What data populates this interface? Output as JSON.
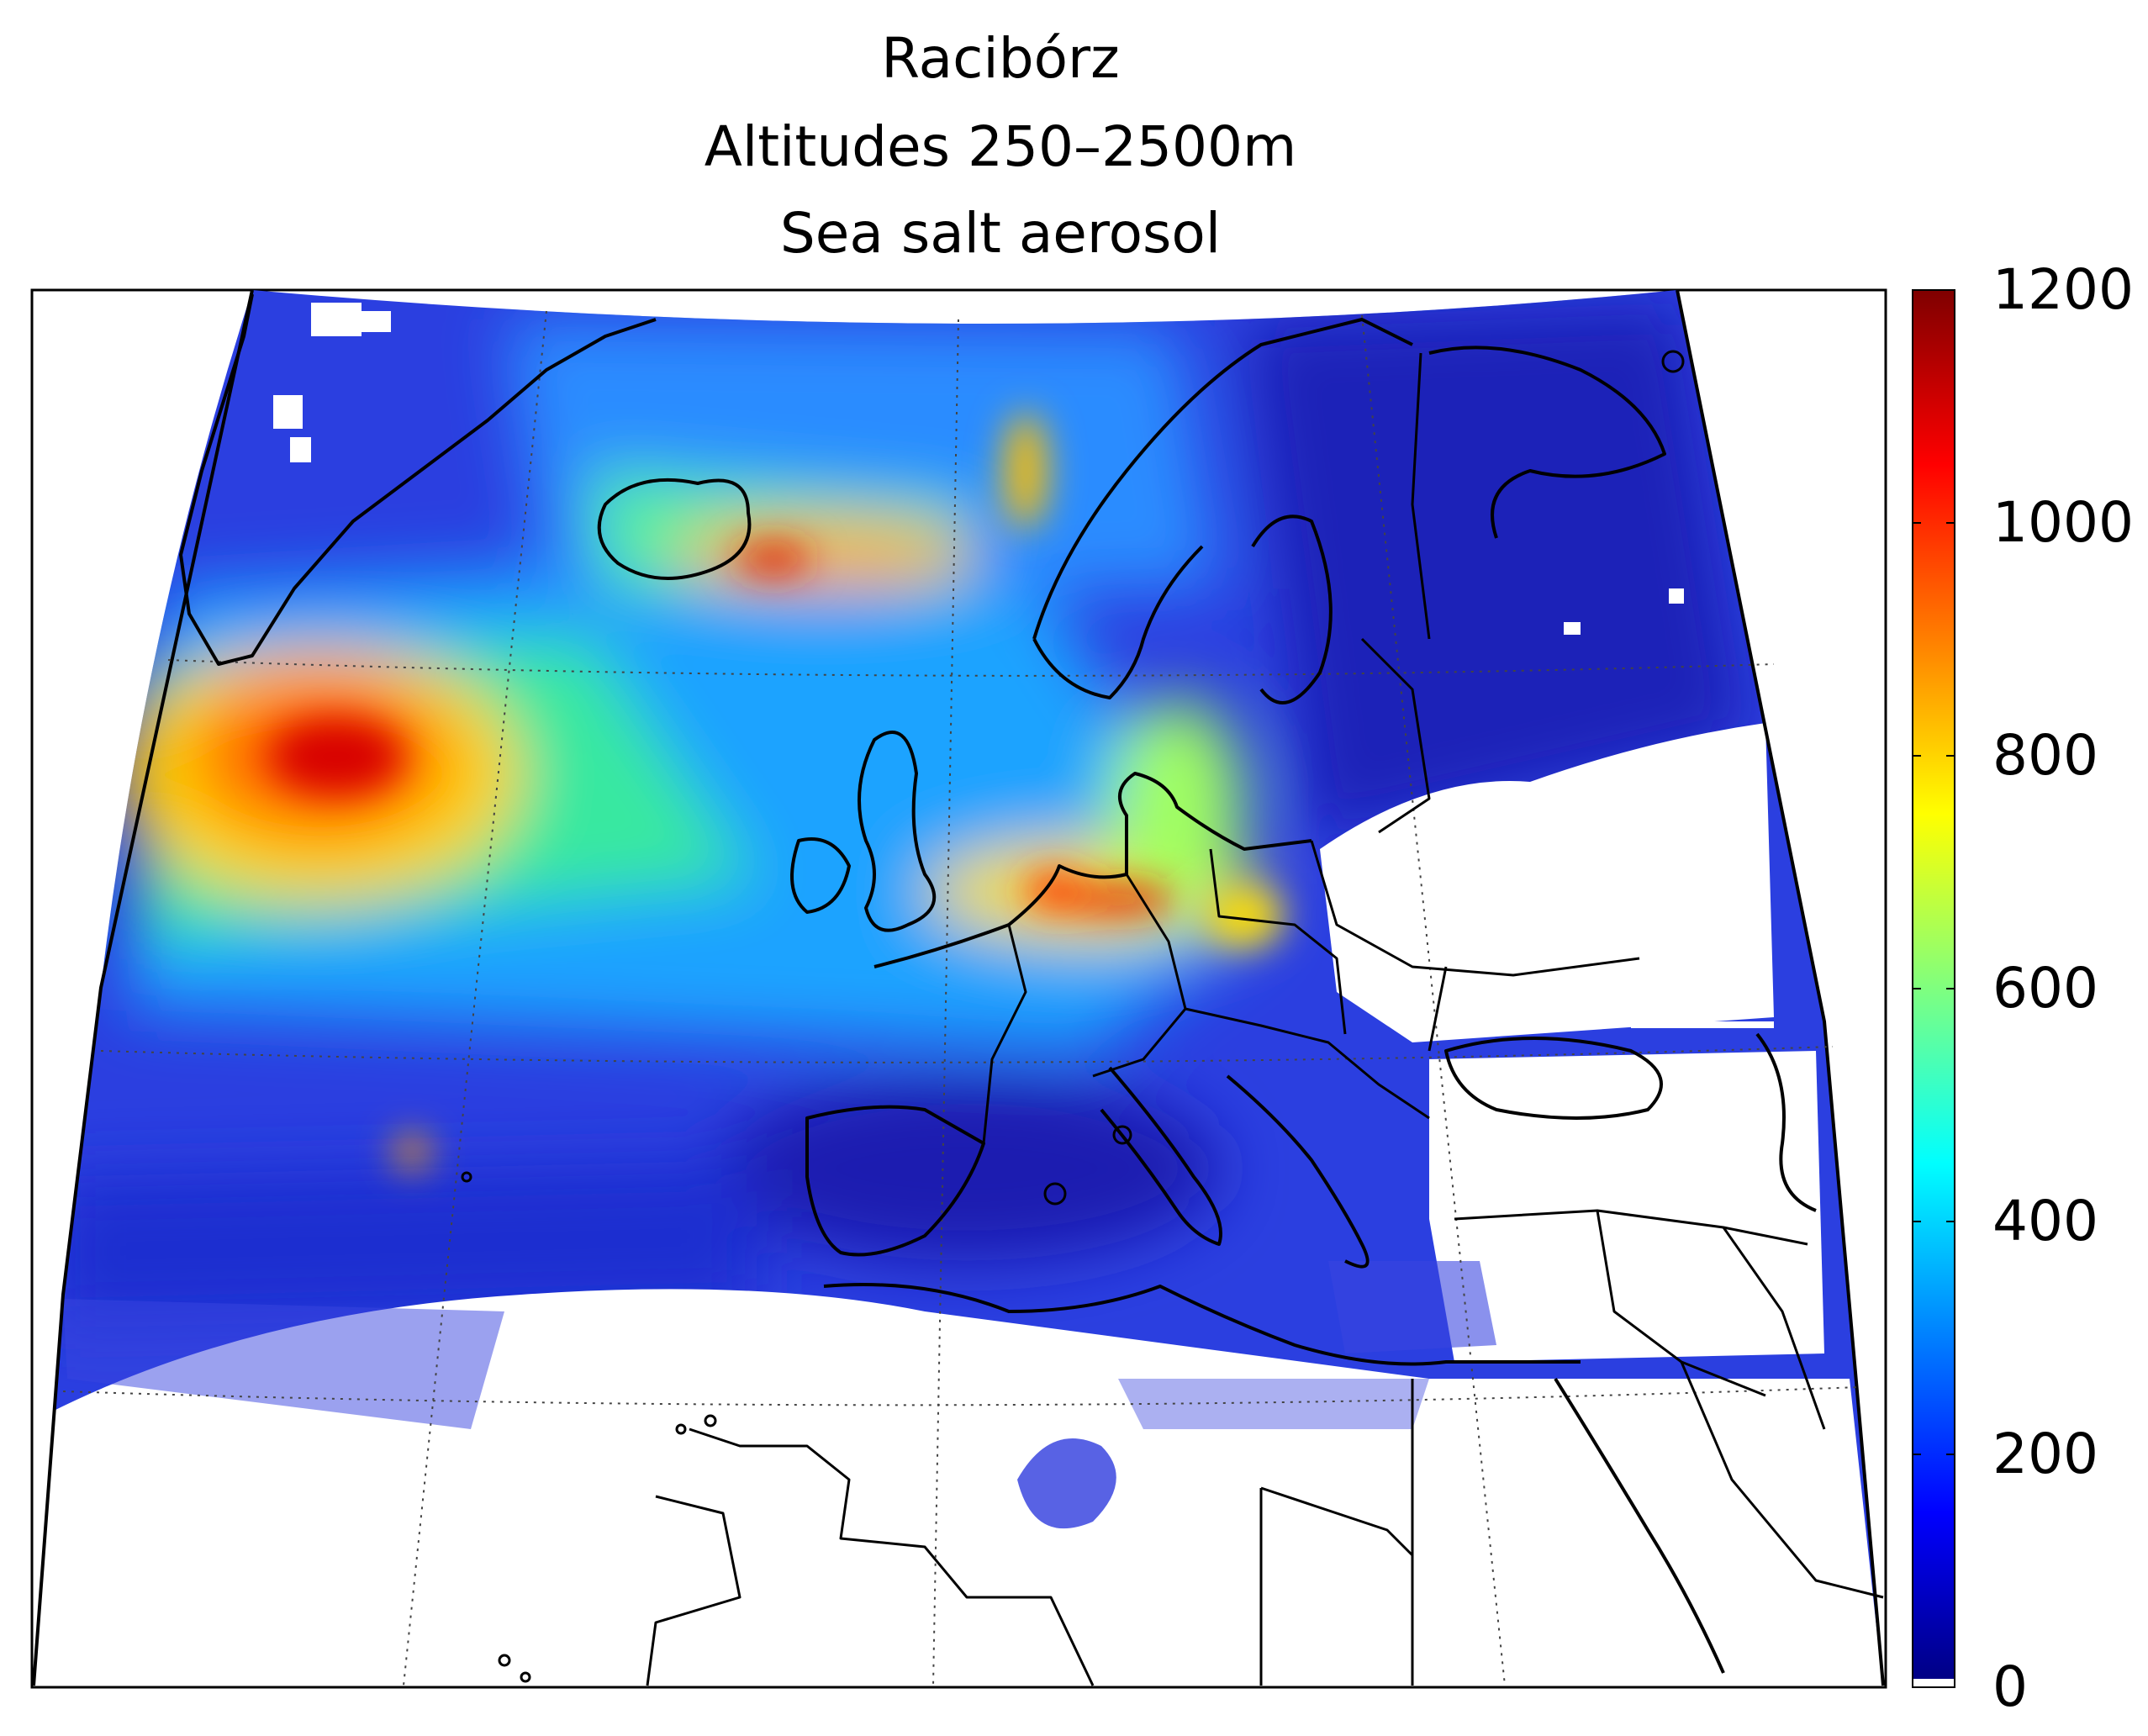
{
  "title": {
    "line1": "Racibórz",
    "line2": "Altitudes 250–2500m",
    "line3": "Sea salt aerosol"
  },
  "colorbar": {
    "min": 0,
    "max": 1200,
    "ticks": [
      "0",
      "200",
      "400",
      "600",
      "800",
      "1000",
      "1200"
    ],
    "colormap": "jet",
    "colors": [
      "#00007f",
      "#0000ff",
      "#007fff",
      "#00ffff",
      "#7fff7f",
      "#ffff00",
      "#ff7f00",
      "#ff0000",
      "#7f0000"
    ]
  },
  "map": {
    "projection": "conic",
    "basemap": "coastlines and country borders",
    "region": "North Atlantic, Europe and North Africa",
    "grid": "dotted",
    "missing_color": "#ffffff"
  },
  "features": {
    "hotspots": [
      {
        "region": "North Atlantic south of Greenland",
        "level": 1100
      },
      {
        "region": "North Sea / Netherlands",
        "level": 1050
      },
      {
        "region": "East of Iceland",
        "level": 1000
      },
      {
        "region": "Baltic / Poland",
        "level": 800
      }
    ]
  }
}
